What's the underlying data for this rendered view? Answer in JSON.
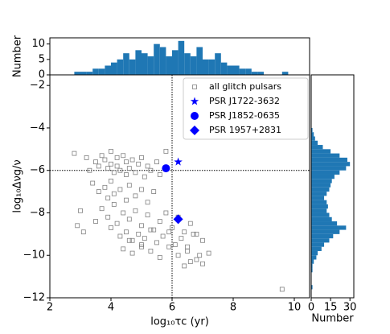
{
  "chart_data": [
    {
      "type": "scatter",
      "xlabel": "log₁₀τc (yr)",
      "ylabel": "log₁₀Δνg/ν",
      "xlim": [
        2,
        10.5
      ],
      "ylim": [
        -12,
        -1.5
      ],
      "xticks": [
        2,
        4,
        6,
        8,
        10
      ],
      "yticks": [
        {
          "value": -12,
          "label": "−12"
        },
        {
          "value": -10,
          "label": "−10"
        },
        {
          "value": -8,
          "label": "−8"
        },
        {
          "value": -6,
          "label": "−6"
        },
        {
          "value": -4,
          "label": "−4"
        },
        {
          "value": -2,
          "label": "−2"
        }
      ],
      "reference_lines": {
        "x": 6,
        "y": -6
      },
      "legend": "upper right",
      "series": [
        {
          "name": "all glitch pulsars",
          "color": "#808080",
          "marker": "square",
          "x": [
            2.8,
            3.0,
            2.9,
            3.2,
            3.3,
            3.5,
            3.6,
            3.7,
            3.8,
            3.9,
            4.0,
            4.0,
            4.1,
            4.2,
            4.2,
            4.3,
            4.4,
            4.5,
            4.5,
            4.6,
            4.7,
            4.8,
            4.9,
            5.0,
            5.1,
            5.2,
            5.3,
            5.5,
            5.6,
            5.8,
            3.4,
            3.6,
            3.8,
            3.9,
            4.0,
            4.1,
            4.3,
            4.5,
            4.6,
            4.8,
            5.0,
            5.2,
            5.4,
            3.7,
            3.9,
            4.1,
            4.2,
            4.4,
            4.6,
            4.8,
            5.0,
            5.2,
            5.4,
            5.6,
            5.8,
            6.0,
            6.2,
            6.4,
            6.6,
            6.8,
            4.3,
            4.5,
            4.7,
            4.9,
            5.1,
            5.3,
            5.5,
            5.7,
            5.9,
            6.1,
            6.3,
            6.5,
            6.7,
            7.0,
            4.4,
            4.7,
            5.0,
            5.3,
            5.6,
            5.9,
            6.2,
            6.5,
            6.8,
            7.2,
            6.4,
            6.6,
            6.9,
            7.0,
            9.6,
            3.1,
            3.5,
            4.0,
            4.6,
            5.0
          ],
          "y": [
            -5.2,
            -7.9,
            -8.6,
            -5.4,
            -6.0,
            -5.6,
            -5.8,
            -5.3,
            -5.5,
            -5.9,
            -5.1,
            -5.7,
            -6.1,
            -5.4,
            -5.8,
            -6.0,
            -5.3,
            -5.6,
            -6.2,
            -5.9,
            -5.5,
            -6.1,
            -5.7,
            -5.4,
            -6.3,
            -5.8,
            -6.0,
            -5.6,
            -6.2,
            -5.1,
            -6.6,
            -7.0,
            -6.8,
            -7.3,
            -6.5,
            -7.1,
            -6.9,
            -7.4,
            -6.7,
            -7.2,
            -6.9,
            -7.5,
            -7.0,
            -7.8,
            -8.2,
            -7.6,
            -8.5,
            -8.0,
            -8.3,
            -7.9,
            -8.6,
            -8.1,
            -8.8,
            -8.4,
            -8.0,
            -8.7,
            -8.2,
            -8.9,
            -8.5,
            -9.0,
            -9.1,
            -8.9,
            -9.3,
            -9.0,
            -9.2,
            -8.8,
            -9.4,
            -9.1,
            -8.9,
            -9.5,
            -9.2,
            -9.6,
            -9.0,
            -9.3,
            -9.7,
            -9.9,
            -9.5,
            -9.8,
            -10.1,
            -9.6,
            -10.0,
            -9.8,
            -10.2,
            -9.9,
            -10.5,
            -10.3,
            -10.0,
            -10.4,
            -11.6,
            -8.9,
            -8.4,
            -8.7,
            -9.3,
            -9.6
          ]
        },
        {
          "name": "PSR J1722-3632",
          "color": "#0000ff",
          "marker": "star",
          "x": [
            6.2
          ],
          "y": [
            -5.6
          ]
        },
        {
          "name": "PSR J1852-0635",
          "color": "#0000ff",
          "marker": "circle",
          "x": [
            5.8
          ],
          "y": [
            -5.9
          ]
        },
        {
          "name": "PSR 1957+2831",
          "color": "#0000ff",
          "marker": "diamond",
          "x": [
            6.2
          ],
          "y": [
            -8.3
          ]
        }
      ]
    },
    {
      "type": "histogram",
      "ylabel": "Number",
      "color": "#1f77b4",
      "ylim": [
        0,
        12
      ],
      "yticks": [
        0,
        5,
        10
      ],
      "bins": [
        2.0,
        2.2,
        2.4,
        2.6,
        2.8,
        3.0,
        3.2,
        3.4,
        3.6,
        3.8,
        4.0,
        4.2,
        4.4,
        4.6,
        4.8,
        5.0,
        5.2,
        5.4,
        5.6,
        5.8,
        6.0,
        6.2,
        6.4,
        6.6,
        6.8,
        7.0,
        7.2,
        7.4,
        7.6,
        7.8,
        8.0,
        8.2,
        8.4,
        8.6,
        8.8,
        9.0,
        9.2,
        9.4,
        9.6,
        9.8,
        10.0,
        10.2,
        10.4
      ],
      "values": [
        0,
        0,
        0,
        0,
        1,
        1,
        1,
        2,
        2,
        3,
        4,
        5,
        7,
        5,
        8,
        7,
        6,
        10,
        9,
        6,
        8,
        11,
        7,
        6,
        9,
        5,
        5,
        7,
        4,
        3,
        3,
        2,
        2,
        1,
        1,
        0,
        0,
        0,
        1,
        0,
        0,
        0
      ]
    },
    {
      "type": "histogram",
      "orientation": "horizontal",
      "xlabel": "Number",
      "color": "#1f77b4",
      "xlim": [
        0,
        33
      ],
      "xticks": [
        0,
        15,
        30
      ],
      "bins": [
        -12.0,
        -11.8,
        -11.6,
        -11.4,
        -11.2,
        -11.0,
        -10.8,
        -10.6,
        -10.4,
        -10.2,
        -10.0,
        -9.8,
        -9.6,
        -9.4,
        -9.2,
        -9.0,
        -8.8,
        -8.6,
        -8.4,
        -8.2,
        -8.0,
        -7.8,
        -7.6,
        -7.4,
        -7.2,
        -7.0,
        -6.8,
        -6.6,
        -6.4,
        -6.2,
        -6.0,
        -5.8,
        -5.6,
        -5.4,
        -5.2,
        -5.0,
        -4.8,
        -4.6,
        -4.4,
        -4.2,
        -4.0,
        -3.8,
        -3.6,
        -3.4,
        -3.2,
        -3.0,
        -2.8,
        -2.6,
        -2.4,
        -2.2,
        -2.0
      ],
      "values": [
        0,
        0,
        1,
        0,
        0,
        0,
        1,
        1,
        2,
        4,
        5,
        8,
        10,
        14,
        17,
        22,
        27,
        20,
        16,
        14,
        12,
        13,
        12,
        10,
        12,
        14,
        15,
        16,
        18,
        22,
        27,
        30,
        28,
        22,
        15,
        9,
        5,
        3,
        2,
        1,
        0,
        0,
        0,
        0,
        0,
        0,
        0,
        0,
        0,
        0
      ]
    }
  ]
}
